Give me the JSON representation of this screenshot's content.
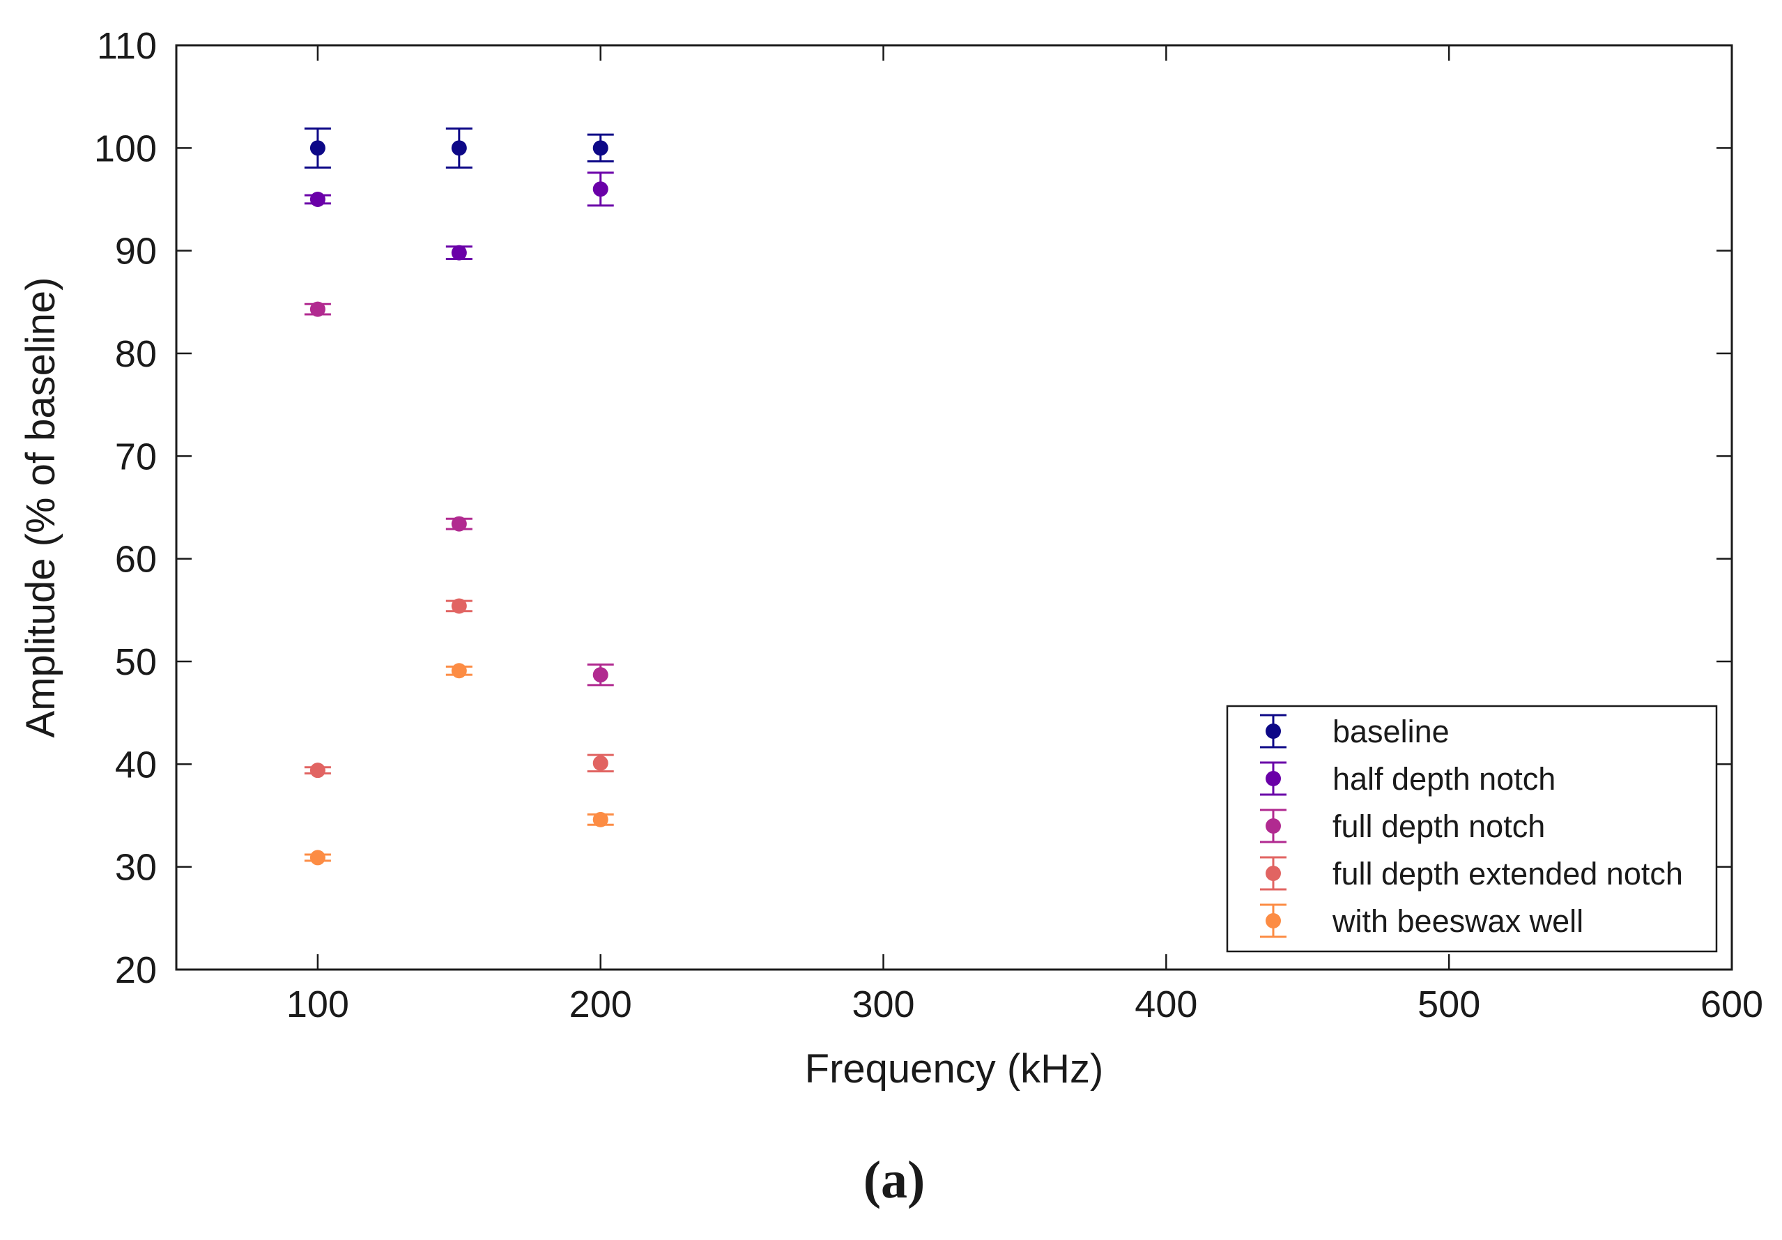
{
  "chart_data": {
    "type": "scatter",
    "title": "",
    "xlabel": "Frequency (kHz)",
    "ylabel": "Amplitude (% of baseline)",
    "xlim": [
      50,
      600
    ],
    "ylim": [
      20,
      110
    ],
    "xticks": [
      100,
      200,
      300,
      400,
      500,
      600
    ],
    "yticks": [
      20,
      30,
      40,
      50,
      60,
      70,
      80,
      90,
      100,
      110
    ],
    "grid": false,
    "legend_position": "bottom-right",
    "caption": "(a)",
    "series": [
      {
        "name": "baseline",
        "color": "#0d0887",
        "x": [
          100,
          150,
          200
        ],
        "y": [
          100,
          100,
          100
        ],
        "err": [
          1.9,
          1.9,
          1.3
        ]
      },
      {
        "name": "half depth notch",
        "color": "#6a00a8",
        "x": [
          100,
          150,
          200
        ],
        "y": [
          95.0,
          89.8,
          96.0
        ],
        "err": [
          0.4,
          0.6,
          1.6
        ]
      },
      {
        "name": "full depth notch",
        "color": "#b12a90",
        "x": [
          100,
          150,
          200
        ],
        "y": [
          84.3,
          63.4,
          48.7
        ],
        "err": [
          0.5,
          0.5,
          1.0
        ]
      },
      {
        "name": "full depth extended notch",
        "color": "#e16462",
        "x": [
          100,
          150,
          200
        ],
        "y": [
          39.4,
          55.4,
          40.1
        ],
        "err": [
          0.3,
          0.5,
          0.8
        ]
      },
      {
        "name": "with beeswax well",
        "color": "#fc8c44",
        "x": [
          100,
          150,
          200
        ],
        "y": [
          30.9,
          49.1,
          34.6
        ],
        "err": [
          0.3,
          0.4,
          0.5
        ]
      }
    ]
  }
}
